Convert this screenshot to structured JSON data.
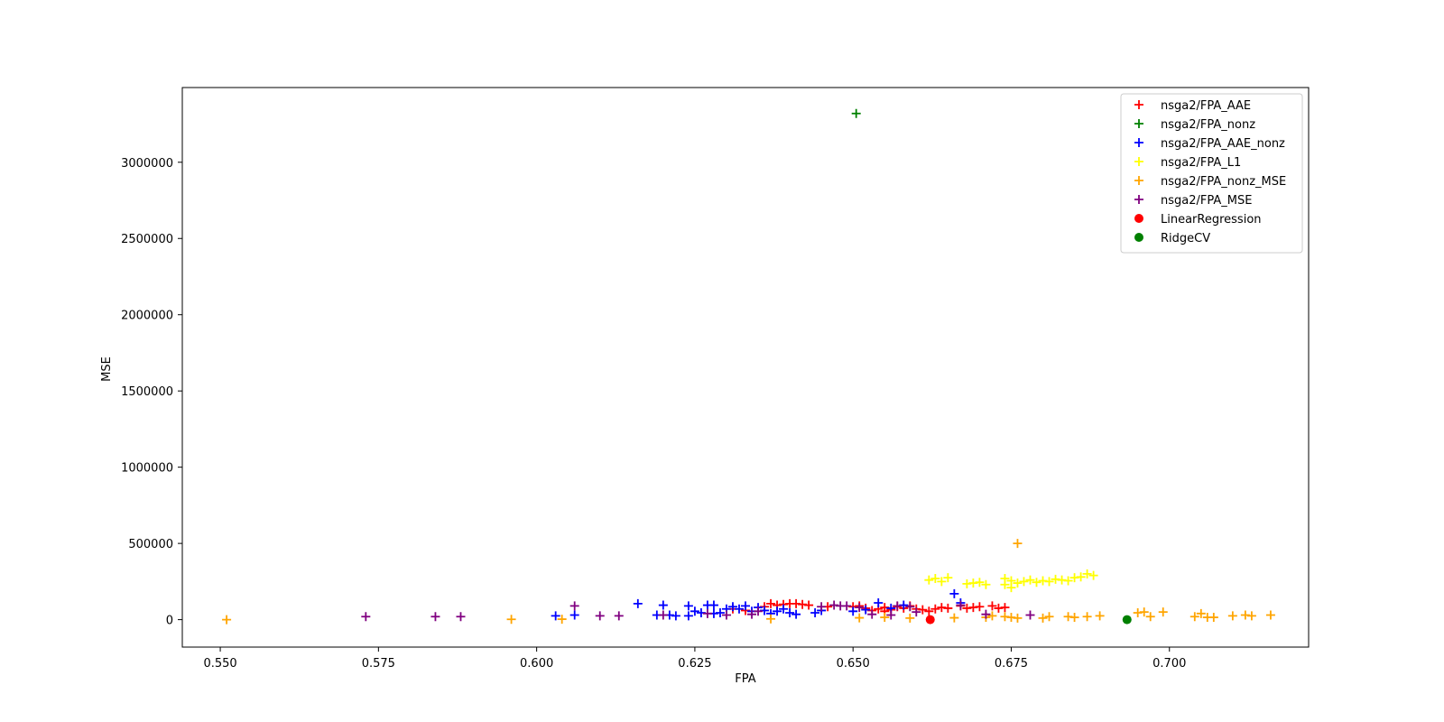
{
  "chart_data": {
    "type": "scatter",
    "title": "",
    "xlabel": "FPA",
    "ylabel": "MSE",
    "xlim": [
      0.544,
      0.722
    ],
    "ylim": [
      -180000,
      3490000
    ],
    "x_ticks": [
      "0.550",
      "0.575",
      "0.600",
      "0.625",
      "0.650",
      "0.675",
      "0.700"
    ],
    "x_tick_values": [
      0.55,
      0.575,
      0.6,
      0.625,
      0.65,
      0.675,
      0.7
    ],
    "y_ticks": [
      "0",
      "500000",
      "1000000",
      "1500000",
      "2000000",
      "2500000",
      "3000000"
    ],
    "y_tick_values": [
      0,
      500000,
      1000000,
      1500000,
      2000000,
      2500000,
      3000000
    ],
    "grid": false,
    "legend_position": "top-right",
    "series": [
      {
        "name": "nsga2/FPA_AAE",
        "marker": "plus",
        "color": "#ff0000",
        "points": [
          [
            0.637,
            105000
          ],
          [
            0.639,
            100000
          ],
          [
            0.64,
            105000
          ],
          [
            0.641,
            105000
          ],
          [
            0.642,
            100000
          ],
          [
            0.643,
            95000
          ],
          [
            0.65,
            85000
          ],
          [
            0.651,
            90000
          ],
          [
            0.652,
            75000
          ],
          [
            0.653,
            60000
          ],
          [
            0.654,
            70000
          ],
          [
            0.655,
            80000
          ],
          [
            0.656,
            65000
          ],
          [
            0.657,
            85000
          ],
          [
            0.658,
            75000
          ],
          [
            0.659,
            90000
          ],
          [
            0.66,
            70000
          ],
          [
            0.661,
            65000
          ],
          [
            0.662,
            55000
          ],
          [
            0.663,
            70000
          ],
          [
            0.664,
            80000
          ],
          [
            0.665,
            75000
          ],
          [
            0.667,
            90000
          ],
          [
            0.668,
            75000
          ],
          [
            0.669,
            80000
          ],
          [
            0.67,
            85000
          ],
          [
            0.672,
            90000
          ],
          [
            0.673,
            75000
          ],
          [
            0.674,
            80000
          ],
          [
            0.636,
            85000
          ],
          [
            0.631,
            70000
          ],
          [
            0.633,
            60000
          ],
          [
            0.638,
            95000
          ],
          [
            0.646,
            85000
          ],
          [
            0.655,
            55000
          ]
        ]
      },
      {
        "name": "nsga2/FPA_nonz",
        "marker": "plus",
        "color": "#008000",
        "points": [
          [
            0.6505,
            3320000
          ]
        ]
      },
      {
        "name": "nsga2/FPA_AAE_nonz",
        "marker": "plus",
        "color": "#0000ff",
        "points": [
          [
            0.603,
            25000
          ],
          [
            0.606,
            30000
          ],
          [
            0.616,
            105000
          ],
          [
            0.619,
            30000
          ],
          [
            0.62,
            95000
          ],
          [
            0.621,
            30000
          ],
          [
            0.622,
            25000
          ],
          [
            0.624,
            90000
          ],
          [
            0.624,
            25000
          ],
          [
            0.625,
            55000
          ],
          [
            0.626,
            45000
          ],
          [
            0.627,
            95000
          ],
          [
            0.628,
            95000
          ],
          [
            0.629,
            45000
          ],
          [
            0.63,
            70000
          ],
          [
            0.631,
            85000
          ],
          [
            0.632,
            70000
          ],
          [
            0.633,
            90000
          ],
          [
            0.634,
            55000
          ],
          [
            0.635,
            80000
          ],
          [
            0.637,
            40000
          ],
          [
            0.638,
            55000
          ],
          [
            0.639,
            70000
          ],
          [
            0.64,
            45000
          ],
          [
            0.641,
            35000
          ],
          [
            0.644,
            45000
          ],
          [
            0.645,
            60000
          ],
          [
            0.65,
            55000
          ],
          [
            0.652,
            65000
          ],
          [
            0.654,
            110000
          ],
          [
            0.656,
            75000
          ],
          [
            0.658,
            95000
          ],
          [
            0.666,
            170000
          ],
          [
            0.667,
            110000
          ],
          [
            0.628,
            40000
          ],
          [
            0.636,
            60000
          ]
        ]
      },
      {
        "name": "nsga2/FPA_L1",
        "marker": "plus",
        "color": "#ffff00",
        "points": [
          [
            0.662,
            260000
          ],
          [
            0.663,
            270000
          ],
          [
            0.664,
            250000
          ],
          [
            0.665,
            275000
          ],
          [
            0.668,
            235000
          ],
          [
            0.669,
            240000
          ],
          [
            0.67,
            245000
          ],
          [
            0.671,
            230000
          ],
          [
            0.674,
            270000
          ],
          [
            0.675,
            255000
          ],
          [
            0.676,
            240000
          ],
          [
            0.677,
            250000
          ],
          [
            0.678,
            260000
          ],
          [
            0.679,
            245000
          ],
          [
            0.68,
            255000
          ],
          [
            0.681,
            250000
          ],
          [
            0.682,
            265000
          ],
          [
            0.683,
            260000
          ],
          [
            0.684,
            255000
          ],
          [
            0.685,
            275000
          ],
          [
            0.686,
            280000
          ],
          [
            0.687,
            300000
          ],
          [
            0.688,
            290000
          ],
          [
            0.675,
            210000
          ],
          [
            0.674,
            230000
          ]
        ]
      },
      {
        "name": "nsga2/FPA_nonz_MSE",
        "marker": "plus",
        "color": "#ffa500",
        "points": [
          [
            0.551,
            0
          ],
          [
            0.596,
            2000
          ],
          [
            0.604,
            3000
          ],
          [
            0.637,
            5000
          ],
          [
            0.651,
            12000
          ],
          [
            0.655,
            15000
          ],
          [
            0.659,
            10000
          ],
          [
            0.666,
            12000
          ],
          [
            0.671,
            15000
          ],
          [
            0.672,
            25000
          ],
          [
            0.674,
            20000
          ],
          [
            0.675,
            15000
          ],
          [
            0.676,
            10000
          ],
          [
            0.676,
            500000
          ],
          [
            0.68,
            10000
          ],
          [
            0.681,
            20000
          ],
          [
            0.684,
            20000
          ],
          [
            0.685,
            15000
          ],
          [
            0.687,
            20000
          ],
          [
            0.689,
            25000
          ],
          [
            0.695,
            45000
          ],
          [
            0.696,
            50000
          ],
          [
            0.697,
            20000
          ],
          [
            0.699,
            50000
          ],
          [
            0.704,
            20000
          ],
          [
            0.705,
            40000
          ],
          [
            0.706,
            15000
          ],
          [
            0.707,
            15000
          ],
          [
            0.71,
            25000
          ],
          [
            0.712,
            30000
          ],
          [
            0.713,
            25000
          ],
          [
            0.716,
            30000
          ]
        ]
      },
      {
        "name": "nsga2/FPA_MSE",
        "marker": "plus",
        "color": "#800080",
        "points": [
          [
            0.573,
            20000
          ],
          [
            0.584,
            20000
          ],
          [
            0.588,
            20000
          ],
          [
            0.606,
            90000
          ],
          [
            0.61,
            25000
          ],
          [
            0.613,
            25000
          ],
          [
            0.62,
            30000
          ],
          [
            0.627,
            40000
          ],
          [
            0.63,
            30000
          ],
          [
            0.634,
            35000
          ],
          [
            0.635,
            55000
          ],
          [
            0.645,
            85000
          ],
          [
            0.647,
            95000
          ],
          [
            0.648,
            90000
          ],
          [
            0.649,
            90000
          ],
          [
            0.651,
            80000
          ],
          [
            0.653,
            35000
          ],
          [
            0.656,
            30000
          ],
          [
            0.657,
            90000
          ],
          [
            0.659,
            85000
          ],
          [
            0.66,
            50000
          ],
          [
            0.667,
            95000
          ],
          [
            0.671,
            35000
          ],
          [
            0.678,
            30000
          ]
        ]
      },
      {
        "name": "LinearRegression",
        "marker": "circle",
        "color": "#ff0000",
        "points": [
          [
            0.6622,
            0
          ]
        ]
      },
      {
        "name": "RidgeCV",
        "marker": "circle",
        "color": "#008000",
        "points": [
          [
            0.6933,
            0
          ]
        ]
      }
    ]
  }
}
